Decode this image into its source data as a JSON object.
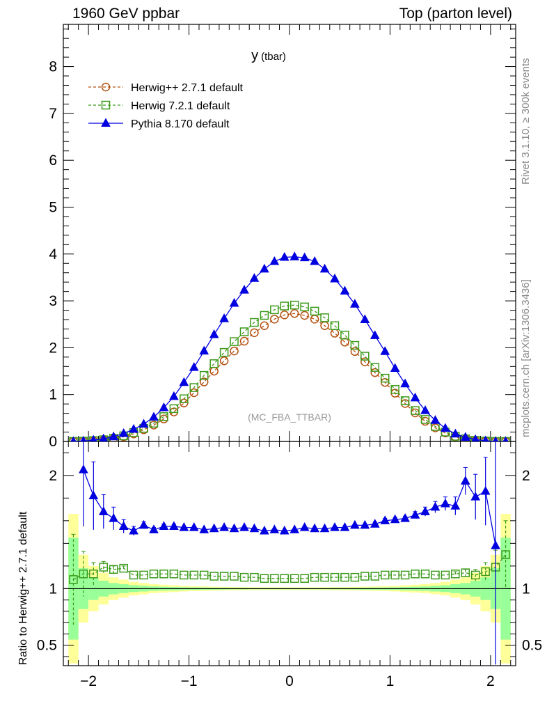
{
  "header": {
    "left": "1960 GeV ppbar",
    "right": "Top (parton level)"
  },
  "side_labels": {
    "rivet": "Rivet 3.1.10, ≥ 300k events",
    "mcplots": "mcplots.cern.ch [arXiv:1306.3436]"
  },
  "colors": {
    "herwigpp": "#b3500f",
    "herwig7": "#3b9a1a",
    "pythia": "#0000e0",
    "band_yellow": "#ffff99",
    "band_green": "#99ff99"
  },
  "chart_data": [
    {
      "type": "line",
      "title": "y",
      "title_sub": "(tbar)",
      "watermark": "(MC_FBA_TTBAR)",
      "xlim": [
        -2.25,
        2.25
      ],
      "ylim": [
        0,
        8.9
      ],
      "y_ticks": [
        "0",
        "1",
        "2",
        "3",
        "4",
        "5",
        "6",
        "7",
        "8"
      ],
      "legend_position": "top-left",
      "x": [
        -2.15,
        -2.05,
        -1.95,
        -1.85,
        -1.75,
        -1.65,
        -1.55,
        -1.45,
        -1.35,
        -1.25,
        -1.15,
        -1.05,
        -0.95,
        -0.85,
        -0.75,
        -0.65,
        -0.55,
        -0.45,
        -0.35,
        -0.25,
        -0.15,
        -0.05,
        0.05,
        0.15,
        0.25,
        0.35,
        0.45,
        0.55,
        0.65,
        0.75,
        0.85,
        0.95,
        1.05,
        1.15,
        1.25,
        1.35,
        1.45,
        1.55,
        1.65,
        1.75,
        1.85,
        1.95,
        2.05,
        2.15
      ],
      "series": [
        {
          "name": "Herwig++ 2.7.1 default",
          "marker": "open-circle",
          "dashed": true,
          "values": [
            0.0,
            0.005,
            0.015,
            0.03,
            0.06,
            0.1,
            0.16,
            0.25,
            0.35,
            0.48,
            0.63,
            0.82,
            1.04,
            1.27,
            1.5,
            1.72,
            1.93,
            2.14,
            2.32,
            2.47,
            2.61,
            2.7,
            2.73,
            2.69,
            2.61,
            2.47,
            2.31,
            2.12,
            1.92,
            1.7,
            1.47,
            1.26,
            1.03,
            0.81,
            0.61,
            0.43,
            0.29,
            0.18,
            0.1,
            0.05,
            0.02,
            0.008,
            0.0,
            0.0
          ]
        },
        {
          "name": "Herwig 7.2.1 default",
          "marker": "open-square",
          "dashed": true,
          "values": [
            0.0,
            0.006,
            0.018,
            0.036,
            0.07,
            0.12,
            0.19,
            0.28,
            0.39,
            0.53,
            0.7,
            0.91,
            1.15,
            1.41,
            1.66,
            1.9,
            2.13,
            2.34,
            2.54,
            2.69,
            2.81,
            2.89,
            2.91,
            2.87,
            2.78,
            2.64,
            2.47,
            2.27,
            2.05,
            1.82,
            1.58,
            1.35,
            1.11,
            0.87,
            0.66,
            0.47,
            0.32,
            0.2,
            0.11,
            0.055,
            0.023,
            0.009,
            0.0,
            0.0
          ]
        },
        {
          "name": "Pythia 8.170 default",
          "marker": "filled-triangle",
          "dashed": false,
          "values": [
            0.0,
            0.01,
            0.028,
            0.055,
            0.1,
            0.17,
            0.26,
            0.37,
            0.52,
            0.72,
            0.96,
            1.26,
            1.58,
            1.93,
            2.28,
            2.62,
            2.95,
            3.23,
            3.48,
            3.68,
            3.84,
            3.93,
            3.94,
            3.92,
            3.84,
            3.68,
            3.47,
            3.21,
            2.93,
            2.6,
            2.26,
            1.92,
            1.56,
            1.23,
            0.93,
            0.66,
            0.45,
            0.28,
            0.16,
            0.09,
            0.04,
            0.015,
            0.0,
            0.0
          ]
        }
      ]
    },
    {
      "type": "line",
      "ylabel": "Ratio to Herwig++ 2.7.1 default",
      "xlim": [
        -2.25,
        2.25
      ],
      "ylim": [
        0.32,
        2.3
      ],
      "y_ticks": [
        "0.5",
        "1",
        "2"
      ],
      "x_ticks": [
        "−2",
        "−1",
        "0",
        "1",
        "2"
      ],
      "x": [
        -2.15,
        -2.05,
        -1.95,
        -1.85,
        -1.75,
        -1.65,
        -1.55,
        -1.45,
        -1.35,
        -1.25,
        -1.15,
        -1.05,
        -0.95,
        -0.85,
        -0.75,
        -0.65,
        -0.55,
        -0.45,
        -0.35,
        -0.25,
        -0.15,
        -0.05,
        0.05,
        0.15,
        0.25,
        0.35,
        0.45,
        0.55,
        0.65,
        0.75,
        0.85,
        0.95,
        1.05,
        1.15,
        1.25,
        1.35,
        1.45,
        1.55,
        1.65,
        1.75,
        1.85,
        1.95,
        2.05,
        2.15
      ],
      "band_yellow": [
        0.66,
        0.3,
        0.2,
        0.14,
        0.1,
        0.08,
        0.06,
        0.05,
        0.04,
        0.035,
        0.03,
        0.025,
        0.022,
        0.02,
        0.018,
        0.016,
        0.015,
        0.014,
        0.013,
        0.012,
        0.012,
        0.012,
        0.012,
        0.012,
        0.012,
        0.013,
        0.014,
        0.015,
        0.016,
        0.018,
        0.02,
        0.022,
        0.025,
        0.03,
        0.035,
        0.04,
        0.05,
        0.06,
        0.08,
        0.1,
        0.14,
        0.2,
        0.3,
        0.66
      ],
      "band_green": [
        0.45,
        0.18,
        0.1,
        0.07,
        0.05,
        0.04,
        0.03,
        0.025,
        0.02,
        0.017,
        0.015,
        0.012,
        0.011,
        0.01,
        0.009,
        0.008,
        0.007,
        0.007,
        0.006,
        0.006,
        0.006,
        0.006,
        0.006,
        0.006,
        0.006,
        0.006,
        0.007,
        0.007,
        0.008,
        0.009,
        0.01,
        0.011,
        0.012,
        0.015,
        0.017,
        0.02,
        0.025,
        0.03,
        0.04,
        0.05,
        0.07,
        0.1,
        0.18,
        0.45
      ],
      "series": [
        {
          "name": "Herwig 7.2.1 default",
          "values": [
            1.08,
            1.13,
            1.13,
            1.19,
            1.17,
            1.18,
            1.12,
            1.12,
            1.13,
            1.13,
            1.13,
            1.12,
            1.12,
            1.12,
            1.11,
            1.11,
            1.11,
            1.1,
            1.1,
            1.09,
            1.09,
            1.09,
            1.09,
            1.09,
            1.1,
            1.1,
            1.1,
            1.1,
            1.1,
            1.11,
            1.11,
            1.12,
            1.12,
            1.12,
            1.13,
            1.13,
            1.12,
            1.12,
            1.13,
            1.14,
            1.12,
            1.15,
            1.19,
            1.3
          ],
          "errors": [
            0.4,
            0.2,
            0.1,
            0.05,
            0.03,
            0.02,
            0.01,
            0.01,
            0.01,
            0.01,
            0.01,
            0.01,
            0.01,
            0.01,
            0.01,
            0.01,
            0.01,
            0.01,
            0.01,
            0.01,
            0.01,
            0.01,
            0.01,
            0.01,
            0.01,
            0.01,
            0.01,
            0.01,
            0.01,
            0.01,
            0.01,
            0.01,
            0.01,
            0.01,
            0.01,
            0.01,
            0.01,
            0.01,
            0.02,
            0.03,
            0.05,
            0.08,
            0.15,
            0.3
          ]
        },
        {
          "name": "Pythia 8.170 default",
          "values": [
            null,
            2.05,
            1.82,
            1.68,
            1.62,
            1.55,
            1.51,
            1.56,
            1.52,
            1.55,
            1.55,
            1.54,
            1.54,
            1.52,
            1.53,
            1.54,
            1.53,
            1.54,
            1.53,
            1.51,
            1.52,
            1.51,
            1.52,
            1.54,
            1.53,
            1.53,
            1.54,
            1.54,
            1.56,
            1.56,
            1.57,
            1.6,
            1.61,
            1.62,
            1.65,
            1.68,
            1.72,
            1.75,
            1.73,
            1.95,
            1.81,
            1.86,
            1.38,
            null
          ],
          "errors": [
            0,
            0.5,
            0.3,
            0.15,
            0.1,
            0.06,
            0.04,
            0.03,
            0.02,
            0.02,
            0.02,
            0.01,
            0.01,
            0.01,
            0.01,
            0.01,
            0.01,
            0.01,
            0.01,
            0.01,
            0.01,
            0.01,
            0.01,
            0.01,
            0.01,
            0.01,
            0.01,
            0.01,
            0.01,
            0.01,
            0.02,
            0.02,
            0.02,
            0.02,
            0.03,
            0.04,
            0.05,
            0.06,
            0.08,
            0.12,
            0.2,
            0.3,
            1.1,
            0
          ]
        }
      ]
    }
  ]
}
